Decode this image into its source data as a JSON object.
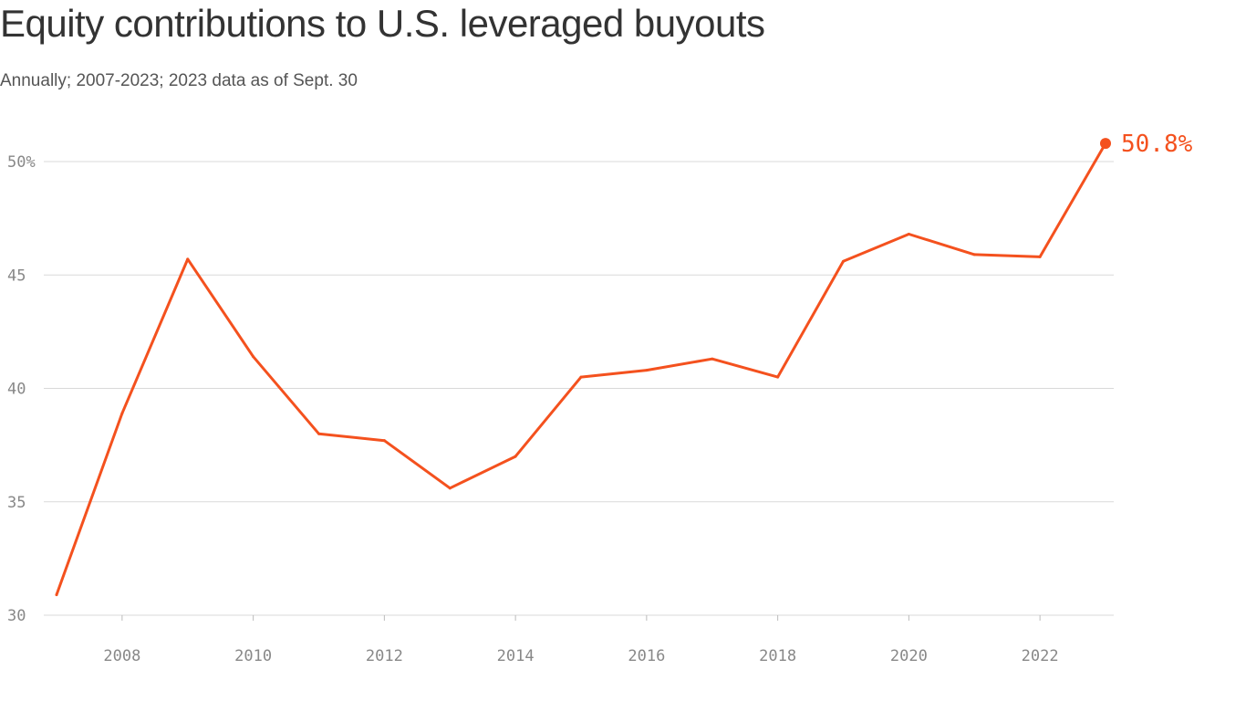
{
  "title": "Equity contributions to U.S. leveraged buyouts",
  "subtitle": "Annually; 2007-2023; 2023 data as of Sept. 30",
  "chart_data": {
    "type": "line",
    "title": "Equity contributions to U.S. leveraged buyouts",
    "subtitle": "Annually; 2007-2023; 2023 data as of Sept. 30",
    "x": [
      2007,
      2008,
      2009,
      2010,
      2011,
      2012,
      2013,
      2014,
      2015,
      2016,
      2017,
      2018,
      2019,
      2020,
      2021,
      2022,
      2023
    ],
    "series": [
      {
        "values": [
          30.9,
          38.9,
          45.7,
          41.4,
          38.0,
          37.7,
          35.6,
          37.0,
          40.5,
          40.8,
          41.3,
          40.5,
          45.6,
          46.8,
          45.9,
          45.8,
          50.8
        ]
      }
    ],
    "xlim": [
      2007,
      2023
    ],
    "ylim": [
      30,
      50
    ],
    "yticks": [
      30,
      35,
      40,
      45,
      50
    ],
    "ytick_labels": [
      "30",
      "35",
      "40",
      "45",
      "50%"
    ],
    "xticks": [
      2008,
      2010,
      2012,
      2014,
      2016,
      2018,
      2020,
      2022
    ],
    "xtick_labels": [
      "2008",
      "2010",
      "2012",
      "2014",
      "2016",
      "2018",
      "2020",
      "2022"
    ],
    "end_label": "50.8%",
    "line_color": "#f4511e",
    "grid": true,
    "xlabel": "",
    "ylabel": ""
  }
}
